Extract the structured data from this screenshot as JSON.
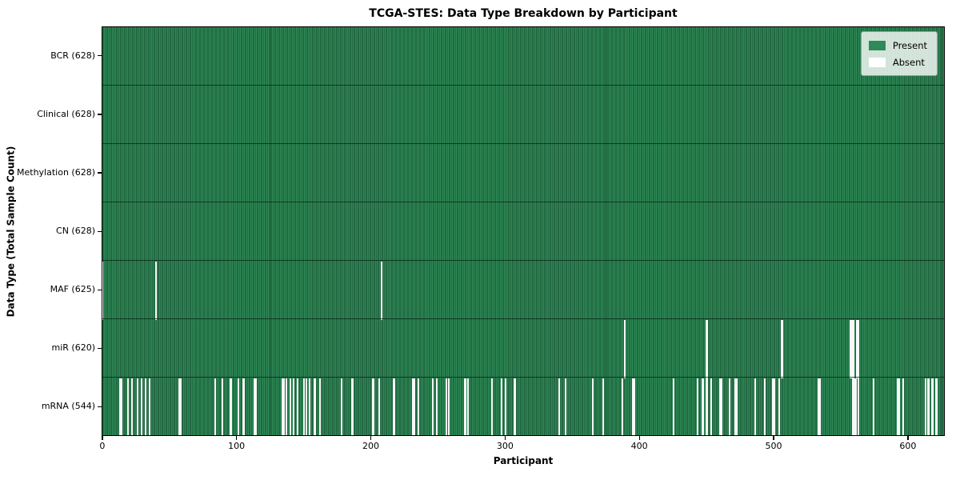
{
  "figure": {
    "title": "TCGA-STES: Data Type Breakdown by Participant",
    "xlabel": "Participant",
    "ylabel": "Data Type (Total Sample Count)"
  },
  "legend": {
    "items": [
      {
        "label": "Present",
        "color": "#2e8b57"
      },
      {
        "label": "Absent",
        "color": "#ffffff"
      }
    ]
  },
  "chart_data": {
    "type": "heatmap",
    "title": "TCGA-STES: Data Type Breakdown by Participant",
    "xlabel": "Participant",
    "ylabel": "Data Type (Total Sample Count)",
    "n_participants": 628,
    "xlim": [
      -0.5,
      627.5
    ],
    "x_ticks": [
      0,
      100,
      200,
      300,
      400,
      500,
      600
    ],
    "grid": false,
    "legend_entries": [
      "Present",
      "Absent"
    ],
    "legend_position": "upper right",
    "colors": {
      "present": "#2e8b57",
      "absent": "#ffffff",
      "bar_edge": "#16472d",
      "row_separator": "#0e3520"
    },
    "rows": [
      {
        "name": "BCR",
        "label": "BCR (628)",
        "total": 628,
        "absent_participants": []
      },
      {
        "name": "Clinical",
        "label": "Clinical (628)",
        "total": 628,
        "absent_participants": []
      },
      {
        "name": "Methylation",
        "label": "Methylation (628)",
        "total": 628,
        "absent_participants": []
      },
      {
        "name": "CN",
        "label": "CN (628)",
        "total": 628,
        "absent_participants": []
      },
      {
        "name": "MAF",
        "label": "MAF (625)",
        "total": 625,
        "absent_participants": [
          1,
          41,
          209
        ]
      },
      {
        "name": "miR",
        "label": "miR (620)",
        "total": 620,
        "absent_participants": [
          390,
          451,
          507,
          558,
          559,
          560,
          563,
          564
        ]
      },
      {
        "name": "mRNA",
        "label": "mRNA (544)",
        "total": 544,
        "absent_participants": [
          14,
          15,
          20,
          23,
          27,
          30,
          33,
          36,
          58,
          59,
          85,
          90,
          96,
          97,
          102,
          106,
          114,
          115,
          135,
          136,
          138,
          141,
          143,
          146,
          151,
          153,
          155,
          159,
          163,
          179,
          187,
          202,
          203,
          207,
          218,
          232,
          233,
          236,
          247,
          250,
          257,
          259,
          271,
          273,
          291,
          298,
          301,
          308,
          341,
          346,
          366,
          374,
          388,
          396,
          397,
          426,
          444,
          448,
          451,
          454,
          461,
          462,
          468,
          472,
          473,
          487,
          494,
          500,
          501,
          505,
          534,
          535,
          560,
          561,
          562,
          564,
          575,
          593,
          594,
          597,
          614,
          616,
          619,
          622
        ]
      }
    ]
  }
}
